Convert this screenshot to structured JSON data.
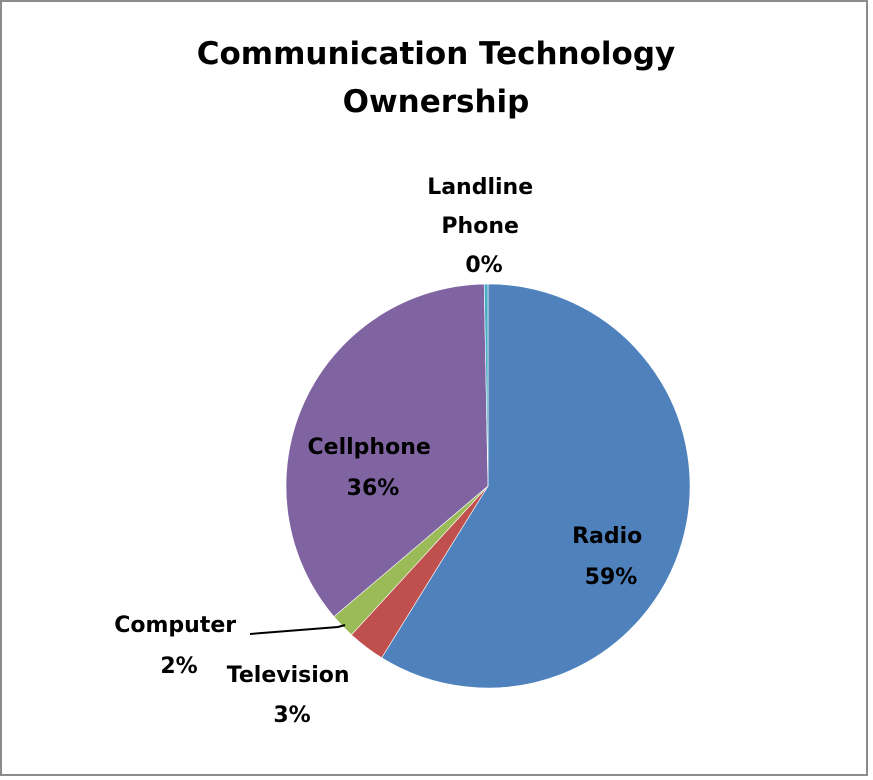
{
  "chart_data": {
    "type": "pie",
    "title_lines": [
      "Communication Technology",
      "Ownership"
    ],
    "slices": [
      {
        "name": "Radio",
        "value": 59,
        "label": "59%",
        "color": "#4F81BD"
      },
      {
        "name": "Television",
        "value": 3,
        "label": "3%",
        "color": "#C0504D"
      },
      {
        "name": "Computer",
        "value": 2,
        "label": "2%",
        "color": "#9BBB59"
      },
      {
        "name": "Cellphone",
        "value": 36,
        "label": "36%",
        "color": "#8064A2"
      },
      {
        "name": "Landline Phone",
        "value": 0.3,
        "label": "0%",
        "color": "#4BACC6"
      }
    ],
    "legend": "none",
    "data_labels": "category and percentage"
  }
}
